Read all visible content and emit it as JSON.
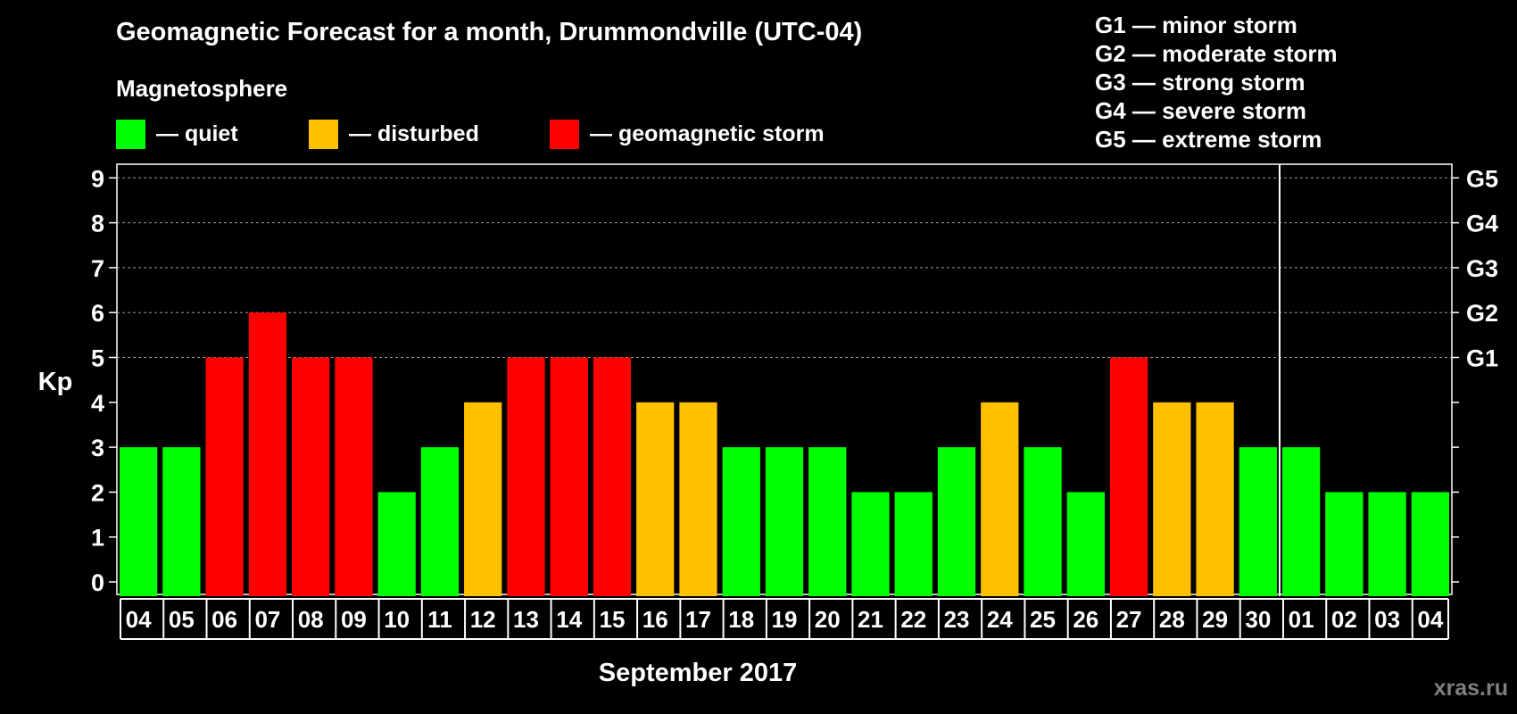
{
  "header": {
    "title": "Geomagnetic Forecast for a month, Drummondville (UTC-04)",
    "subtitle": "Magnetosphere"
  },
  "legend": [
    {
      "label": "— quiet",
      "color": "#00ff00"
    },
    {
      "label": "— disturbed",
      "color": "#ffc000"
    },
    {
      "label": "— geomagnetic storm",
      "color": "#ff0000"
    }
  ],
  "storm_scale": [
    "G1 — minor storm",
    "G2 — moderate storm",
    "G3 — strong storm",
    "G4 — severe storm",
    "G5 — extreme storm"
  ],
  "watermark": "xras.ru",
  "chart_data": {
    "type": "bar",
    "title": "Geomagnetic Forecast for a month, Drummondville (UTC-04)",
    "xlabel": "September 2017",
    "ylabel": "Kp",
    "ylim": [
      0,
      9
    ],
    "yticks": [
      "0",
      "1",
      "2",
      "3",
      "4",
      "5",
      "6",
      "7",
      "8",
      "9"
    ],
    "right_axis_labels": [
      {
        "kp": 5,
        "label": "G1"
      },
      {
        "kp": 6,
        "label": "G2"
      },
      {
        "kp": 7,
        "label": "G3"
      },
      {
        "kp": 8,
        "label": "G4"
      },
      {
        "kp": 9,
        "label": "G5"
      }
    ],
    "grid": "dashed horizontal at Kp 5-9",
    "month_separator_after": "30",
    "categories": [
      "04",
      "05",
      "06",
      "07",
      "08",
      "09",
      "10",
      "11",
      "12",
      "13",
      "14",
      "15",
      "16",
      "17",
      "18",
      "19",
      "20",
      "21",
      "22",
      "23",
      "24",
      "25",
      "26",
      "27",
      "28",
      "29",
      "30",
      "01",
      "02",
      "03",
      "04"
    ],
    "values": [
      3,
      3,
      5,
      6,
      5,
      5,
      2,
      3,
      4,
      5,
      5,
      5,
      4,
      4,
      3,
      3,
      3,
      2,
      2,
      3,
      4,
      3,
      2,
      5,
      4,
      4,
      3,
      3,
      2,
      2,
      2
    ],
    "color_levels": {
      "quiet": "#00ff00",
      "disturbed": "#ffc000",
      "storm": "#ff0000"
    }
  }
}
